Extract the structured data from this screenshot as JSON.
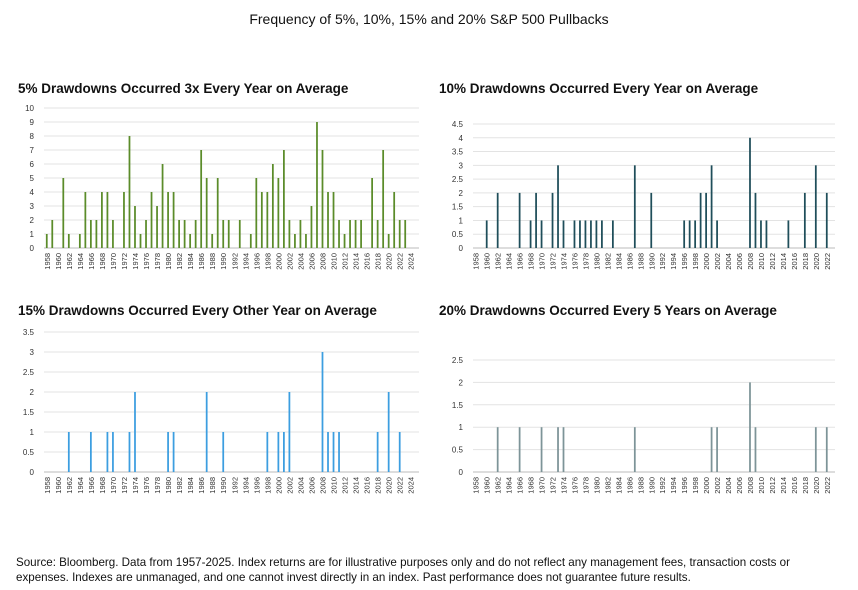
{
  "title": "Frequency of 5%, 10%, 15% and 20% S&P 500 Pullbacks",
  "source": "Source: Bloomberg. Data from 1957-2025. Index returns are for illustrative purposes only and do not reflect any management fees, transaction costs or expenses. Indexes are unmanaged, and one cannot invest directly in an index. Past performance does not guarantee future results.",
  "chart_data": [
    {
      "type": "bar",
      "title": "5% Drawdowns Occurred 3x Every Year on Average",
      "color": "#5b8c2a",
      "x_tick_labels": [
        "1958",
        "1960",
        "1962",
        "1964",
        "1966",
        "1968",
        "1970",
        "1972",
        "1974",
        "1976",
        "1978",
        "1980",
        "1982",
        "1984",
        "1986",
        "1988",
        "1990",
        "1992",
        "1994",
        "1996",
        "1998",
        "2000",
        "2002",
        "2004",
        "2006",
        "2008",
        "2010",
        "2012",
        "2014",
        "2016",
        "2018",
        "2020",
        "2022",
        "2024"
      ],
      "y_ticks": [
        0,
        1,
        2,
        3,
        4,
        5,
        6,
        7,
        8,
        9,
        10
      ],
      "ylim": [
        0,
        10
      ],
      "x": [
        1958,
        1959,
        1960,
        1961,
        1962,
        1963,
        1964,
        1965,
        1966,
        1967,
        1968,
        1969,
        1970,
        1971,
        1972,
        1973,
        1974,
        1975,
        1976,
        1977,
        1978,
        1979,
        1980,
        1981,
        1982,
        1983,
        1984,
        1985,
        1986,
        1987,
        1988,
        1989,
        1990,
        1991,
        1992,
        1993,
        1994,
        1995,
        1996,
        1997,
        1998,
        1999,
        2000,
        2001,
        2002,
        2003,
        2004,
        2005,
        2006,
        2007,
        2008,
        2009,
        2010,
        2011,
        2012,
        2013,
        2014,
        2015,
        2016,
        2017,
        2018,
        2019,
        2020,
        2021,
        2022,
        2023,
        2024,
        2025
      ],
      "values": [
        1,
        2,
        0,
        5,
        1,
        0,
        1,
        4,
        2,
        2,
        4,
        4,
        2,
        0,
        4,
        8,
        3,
        1,
        2,
        4,
        3,
        6,
        4,
        4,
        2,
        2,
        1,
        2,
        7,
        5,
        1,
        5,
        2,
        2,
        0,
        2,
        0,
        1,
        5,
        4,
        4,
        6,
        5,
        7,
        2,
        1,
        2,
        1,
        3,
        9,
        7,
        4,
        4,
        2,
        1,
        2,
        2,
        2,
        0,
        5,
        2,
        7,
        1,
        4,
        2,
        2,
        0,
        0
      ]
    },
    {
      "type": "bar",
      "title": "10% Drawdowns Occurred Every Year on Average",
      "color": "#1f4e5a",
      "x_tick_labels": [
        "1958",
        "1960",
        "1962",
        "1964",
        "1966",
        "1968",
        "1970",
        "1972",
        "1974",
        "1976",
        "1978",
        "1980",
        "1982",
        "1984",
        "1986",
        "1988",
        "1990",
        "1992",
        "1994",
        "1996",
        "1998",
        "2000",
        "2002",
        "2004",
        "2006",
        "2008",
        "2010",
        "2012",
        "2014",
        "2016",
        "2018",
        "2020",
        "2022"
      ],
      "y_ticks": [
        0,
        0.5,
        1,
        1.5,
        2,
        2.5,
        3,
        3.5,
        4,
        4.5
      ],
      "ylim": [
        0,
        4.5
      ],
      "x": [
        1958,
        1959,
        1960,
        1961,
        1962,
        1963,
        1964,
        1965,
        1966,
        1967,
        1968,
        1969,
        1970,
        1971,
        1972,
        1973,
        1974,
        1975,
        1976,
        1977,
        1978,
        1979,
        1980,
        1981,
        1982,
        1983,
        1984,
        1985,
        1986,
        1987,
        1988,
        1989,
        1990,
        1991,
        1992,
        1993,
        1994,
        1995,
        1996,
        1997,
        1998,
        1999,
        2000,
        2001,
        2002,
        2003,
        2004,
        2005,
        2006,
        2007,
        2008,
        2009,
        2010,
        2011,
        2012,
        2013,
        2014,
        2015,
        2016,
        2017,
        2018,
        2019,
        2020,
        2021,
        2022,
        2023
      ],
      "values": [
        0,
        0,
        1,
        0,
        2,
        0,
        0,
        0,
        2,
        0,
        1,
        2,
        1,
        0,
        2,
        3,
        1,
        0,
        1,
        1,
        1,
        1,
        1,
        1,
        0,
        1,
        0,
        0,
        0,
        3,
        0,
        0,
        2,
        0,
        0,
        0,
        0,
        0,
        1,
        1,
        1,
        2,
        2,
        3,
        1,
        0,
        0,
        0,
        0,
        0,
        4,
        2,
        1,
        1,
        0,
        0,
        0,
        1,
        0,
        0,
        2,
        0,
        3,
        0,
        2,
        0
      ]
    },
    {
      "type": "bar",
      "title": "15% Drawdowns Occurred Every Other Year on Average",
      "color": "#3c9ee0",
      "x_tick_labels": [
        "1958",
        "1960",
        "1962",
        "1964",
        "1966",
        "1968",
        "1970",
        "1972",
        "1974",
        "1976",
        "1978",
        "1980",
        "1982",
        "1984",
        "1986",
        "1988",
        "1990",
        "1992",
        "1994",
        "1996",
        "1998",
        "2000",
        "2002",
        "2004",
        "2006",
        "2008",
        "2010",
        "2012",
        "2014",
        "2016",
        "2018",
        "2020",
        "2022",
        "2024"
      ],
      "y_ticks": [
        0,
        0.5,
        1,
        1.5,
        2,
        2.5,
        3,
        3.5
      ],
      "ylim": [
        0,
        3.5
      ],
      "x": [
        1958,
        1959,
        1960,
        1961,
        1962,
        1963,
        1964,
        1965,
        1966,
        1967,
        1968,
        1969,
        1970,
        1971,
        1972,
        1973,
        1974,
        1975,
        1976,
        1977,
        1978,
        1979,
        1980,
        1981,
        1982,
        1983,
        1984,
        1985,
        1986,
        1987,
        1988,
        1989,
        1990,
        1991,
        1992,
        1993,
        1994,
        1995,
        1996,
        1997,
        1998,
        1999,
        2000,
        2001,
        2002,
        2003,
        2004,
        2005,
        2006,
        2007,
        2008,
        2009,
        2010,
        2011,
        2012,
        2013,
        2014,
        2015,
        2016,
        2017,
        2018,
        2019,
        2020,
        2021,
        2022,
        2023,
        2024,
        2025
      ],
      "values": [
        0,
        0,
        0,
        0,
        1,
        0,
        0,
        0,
        1,
        0,
        0,
        1,
        1,
        0,
        0,
        1,
        2,
        0,
        0,
        0,
        0,
        0,
        1,
        1,
        0,
        0,
        0,
        0,
        0,
        2,
        0,
        0,
        1,
        0,
        0,
        0,
        0,
        0,
        0,
        0,
        1,
        0,
        1,
        1,
        2,
        0,
        0,
        0,
        0,
        0,
        3,
        1,
        1,
        1,
        0,
        0,
        0,
        0,
        0,
        0,
        1,
        0,
        2,
        0,
        1,
        0,
        0,
        0
      ]
    },
    {
      "type": "bar",
      "title": "20% Drawdowns Occurred Every 5 Years on Average",
      "color": "#7d9498",
      "x_tick_labels": [
        "1958",
        "1960",
        "1962",
        "1964",
        "1966",
        "1968",
        "1970",
        "1972",
        "1974",
        "1976",
        "1978",
        "1980",
        "1982",
        "1984",
        "1986",
        "1988",
        "1990",
        "1992",
        "1994",
        "1996",
        "1998",
        "2000",
        "2002",
        "2004",
        "2006",
        "2008",
        "2010",
        "2012",
        "2014",
        "2016",
        "2018",
        "2020",
        "2022"
      ],
      "y_ticks": [
        0,
        0.5,
        1,
        1.5,
        2,
        2.5
      ],
      "ylim": [
        0,
        2.5
      ],
      "x": [
        1958,
        1959,
        1960,
        1961,
        1962,
        1963,
        1964,
        1965,
        1966,
        1967,
        1968,
        1969,
        1970,
        1971,
        1972,
        1973,
        1974,
        1975,
        1976,
        1977,
        1978,
        1979,
        1980,
        1981,
        1982,
        1983,
        1984,
        1985,
        1986,
        1987,
        1988,
        1989,
        1990,
        1991,
        1992,
        1993,
        1994,
        1995,
        1996,
        1997,
        1998,
        1999,
        2000,
        2001,
        2002,
        2003,
        2004,
        2005,
        2006,
        2007,
        2008,
        2009,
        2010,
        2011,
        2012,
        2013,
        2014,
        2015,
        2016,
        2017,
        2018,
        2019,
        2020,
        2021,
        2022,
        2023
      ],
      "values": [
        0,
        0,
        0,
        0,
        1,
        0,
        0,
        0,
        1,
        0,
        0,
        0,
        1,
        0,
        0,
        1,
        1,
        0,
        0,
        0,
        0,
        0,
        0,
        0,
        0,
        0,
        0,
        0,
        0,
        1,
        0,
        0,
        0,
        0,
        0,
        0,
        0,
        0,
        0,
        0,
        0,
        0,
        0,
        1,
        1,
        0,
        0,
        0,
        0,
        0,
        2,
        1,
        0,
        0,
        0,
        0,
        0,
        0,
        0,
        0,
        0,
        0,
        1,
        0,
        1,
        0
      ]
    }
  ]
}
